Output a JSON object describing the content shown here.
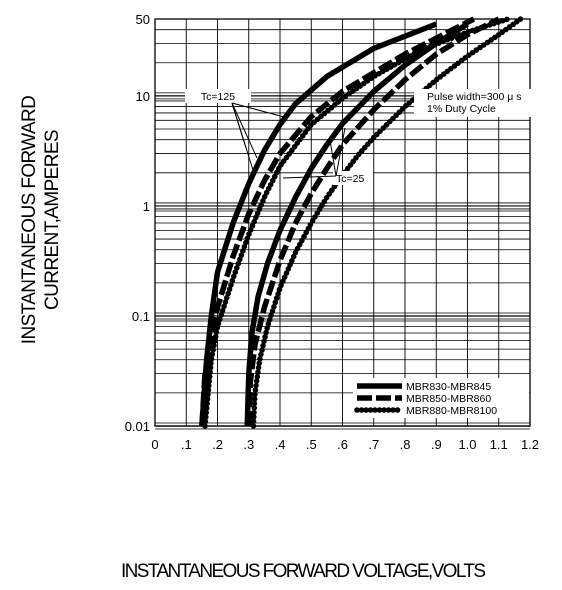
{
  "chart_data": {
    "type": "line",
    "title": "",
    "xlabel": "INSTANTANEOUS FORWARD VOLTAGE,VOLTS",
    "ylabel_lines": [
      "INSTANTANEOUS FORWARD",
      "CURRENT,AMPERES"
    ],
    "xlim": [
      0,
      1.2
    ],
    "ylim": [
      0.01,
      50
    ],
    "y_scale": "log",
    "grid": true,
    "x_ticks": [
      "0",
      ".1",
      ".2",
      ".3",
      ".4",
      ".5",
      ".6",
      ".7",
      ".8",
      ".9",
      "1.0",
      "1.1",
      "1.2"
    ],
    "y_ticks": [
      "0.01",
      "0.1",
      "1",
      "10",
      "50"
    ],
    "legend_position": "bottom-right",
    "annotations": {
      "tc_high": "Tc=125",
      "tc_low": "Tc=25",
      "pulse": "Pulse width=300 μ s",
      "duty": "1% Duty Cycle"
    },
    "series": [
      {
        "name": "MBR830-MBR845",
        "style": "solid",
        "condition": "Tc=125",
        "x": [
          0.15,
          0.165,
          0.18,
          0.2,
          0.25,
          0.3,
          0.35,
          0.4,
          0.45,
          0.55,
          0.7,
          0.9
        ],
        "y": [
          0.01,
          0.04,
          0.1,
          0.25,
          0.7,
          1.6,
          3.2,
          5.5,
          8.5,
          15,
          27,
          45
        ]
      },
      {
        "name": "MBR850-MBR860",
        "style": "dashed",
        "condition": "Tc=125",
        "x": [
          0.15,
          0.16,
          0.18,
          0.2,
          0.25,
          0.3,
          0.35,
          0.4,
          0.5,
          0.6,
          0.8,
          1.02
        ],
        "y": [
          0.01,
          0.03,
          0.06,
          0.12,
          0.35,
          0.85,
          1.7,
          3.0,
          6.5,
          11,
          24,
          50
        ]
      },
      {
        "name": "MBR880-MBR8100",
        "style": "dotted",
        "condition": "Tc=125",
        "x": [
          0.16,
          0.18,
          0.2,
          0.25,
          0.3,
          0.35,
          0.4,
          0.5,
          0.6,
          0.7,
          0.85,
          1.0,
          1.13
        ],
        "y": [
          0.01,
          0.04,
          0.08,
          0.22,
          0.55,
          1.2,
          2.3,
          5.5,
          9.5,
          15,
          26,
          38,
          50
        ]
      },
      {
        "name": "MBR830-MBR845",
        "style": "solid",
        "condition": "Tc=25",
        "x": [
          0.295,
          0.3,
          0.31,
          0.33,
          0.36,
          0.4,
          0.45,
          0.5,
          0.55,
          0.6,
          0.7,
          0.8,
          0.9,
          1.0
        ],
        "y": [
          0.01,
          0.03,
          0.07,
          0.15,
          0.3,
          0.6,
          1.2,
          2.2,
          3.6,
          5.6,
          11,
          19,
          30,
          45
        ]
      },
      {
        "name": "MBR850-MBR860",
        "style": "dashed",
        "condition": "Tc=25",
        "x": [
          0.3,
          0.305,
          0.32,
          0.35,
          0.4,
          0.45,
          0.5,
          0.55,
          0.6,
          0.7,
          0.8,
          0.9,
          1.0,
          1.1
        ],
        "y": [
          0.01,
          0.025,
          0.055,
          0.12,
          0.32,
          0.7,
          1.3,
          2.2,
          3.6,
          7.5,
          14,
          24,
          36,
          50
        ]
      },
      {
        "name": "MBR880-MBR8100",
        "style": "dotted",
        "condition": "Tc=25",
        "x": [
          0.315,
          0.32,
          0.335,
          0.36,
          0.4,
          0.45,
          0.5,
          0.55,
          0.6,
          0.65,
          0.7,
          0.8,
          0.9,
          1.0,
          1.1,
          1.17
        ],
        "y": [
          0.01,
          0.02,
          0.04,
          0.08,
          0.18,
          0.38,
          0.7,
          1.2,
          1.9,
          2.9,
          4.2,
          8,
          14,
          23,
          36,
          50
        ]
      }
    ]
  }
}
